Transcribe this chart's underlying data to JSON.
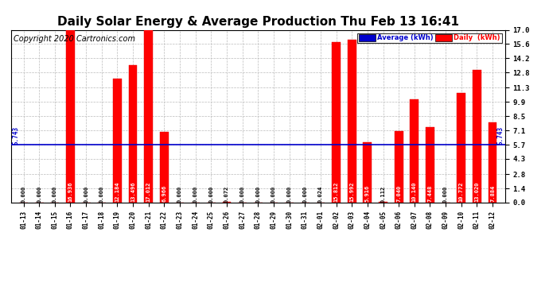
{
  "title": "Daily Solar Energy & Average Production Thu Feb 13 16:41",
  "copyright": "Copyright 2020 Cartronics.com",
  "categories": [
    "01-13",
    "01-14",
    "01-15",
    "01-16",
    "01-17",
    "01-18",
    "01-19",
    "01-20",
    "01-21",
    "01-22",
    "01-23",
    "01-24",
    "01-25",
    "01-26",
    "01-27",
    "01-28",
    "01-29",
    "01-30",
    "01-31",
    "02-01",
    "02-02",
    "02-03",
    "02-04",
    "02-05",
    "02-06",
    "02-07",
    "02-08",
    "02-09",
    "02-10",
    "02-11",
    "02-12"
  ],
  "values": [
    0.0,
    0.0,
    0.0,
    16.936,
    0.0,
    0.0,
    12.184,
    13.496,
    17.012,
    6.966,
    0.0,
    0.0,
    0.0,
    0.072,
    0.0,
    0.0,
    0.0,
    0.0,
    0.0,
    0.024,
    15.812,
    15.992,
    5.916,
    0.112,
    7.04,
    10.14,
    7.448,
    0.0,
    10.772,
    13.02,
    7.884
  ],
  "average": 5.743,
  "ylim": [
    0.0,
    17.0
  ],
  "yticks": [
    0.0,
    1.4,
    2.8,
    4.3,
    5.7,
    7.1,
    8.5,
    9.9,
    11.3,
    12.8,
    14.2,
    15.6,
    17.0
  ],
  "bar_color": "#ff0000",
  "bar_edge_color": "#dd0000",
  "avg_line_color": "#0000cc",
  "bg_color": "#ffffff",
  "plot_bg_color": "#ffffff",
  "grid_color": "#bbbbbb",
  "title_fontsize": 11,
  "copyright_fontsize": 7,
  "legend_avg_bg": "#0000cc",
  "legend_daily_bg": "#ff0000",
  "legend_text_color": "#ffffff",
  "avg_label": "Average (kWh)",
  "daily_label": "Daily  (kWh)"
}
